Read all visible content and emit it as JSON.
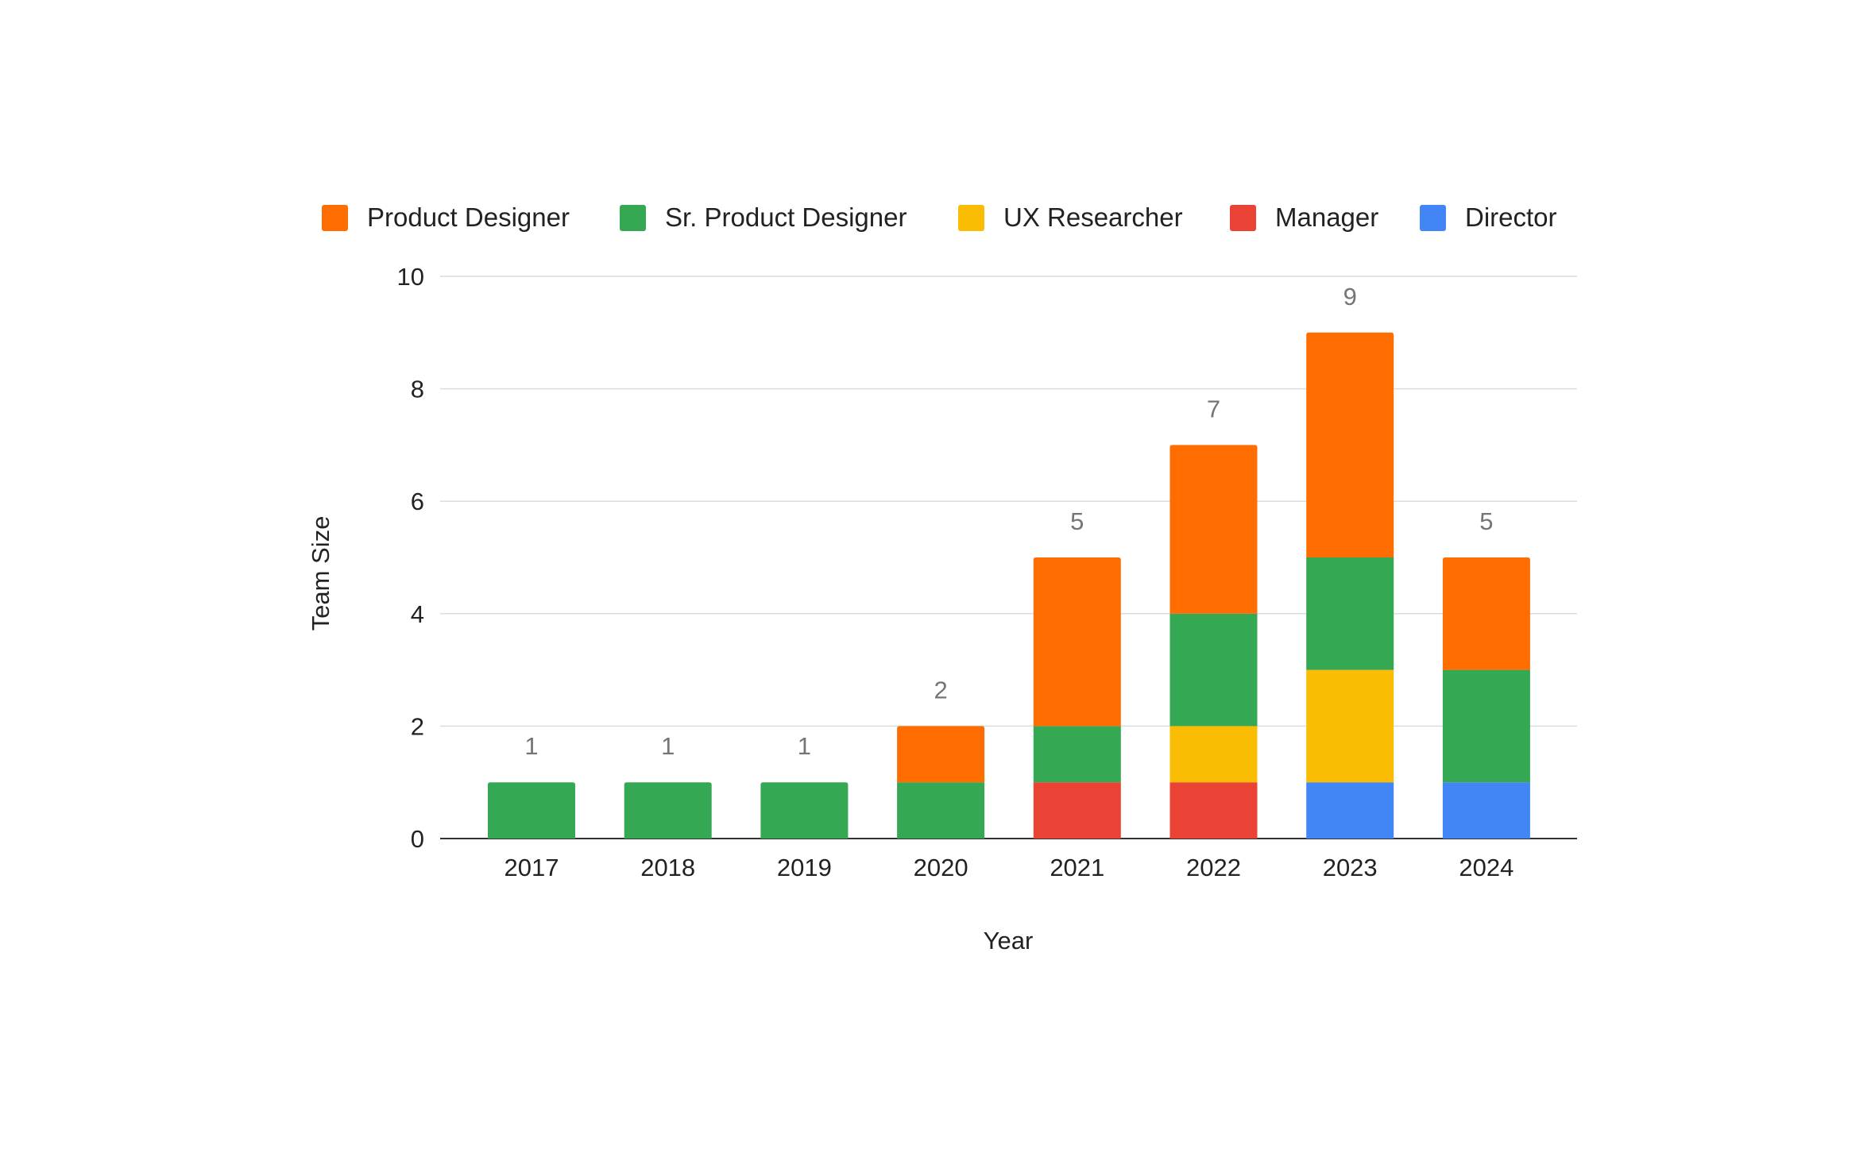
{
  "chart_data": {
    "type": "bar",
    "stacked": true,
    "title": "",
    "xlabel": "Year",
    "ylabel": "Team Size",
    "ylim": [
      0,
      10
    ],
    "yticks": [
      0,
      2,
      4,
      6,
      8,
      10
    ],
    "grid": true,
    "legend_position": "top",
    "categories": [
      "2017",
      "2018",
      "2019",
      "2020",
      "2021",
      "2022",
      "2023",
      "2024"
    ],
    "series": [
      {
        "name": "Product Designer",
        "color": "#ff6d01",
        "values": [
          0,
          0,
          0,
          1,
          3,
          3,
          4,
          2
        ]
      },
      {
        "name": "Sr. Product Designer",
        "color": "#34a853",
        "values": [
          1,
          1,
          1,
          1,
          1,
          2,
          2,
          2
        ]
      },
      {
        "name": "UX Researcher",
        "color": "#fbbc04",
        "values": [
          0,
          0,
          0,
          0,
          0,
          1,
          2,
          0
        ]
      },
      {
        "name": "Manager",
        "color": "#ea4335",
        "values": [
          0,
          0,
          0,
          0,
          1,
          1,
          0,
          0
        ]
      },
      {
        "name": "Director",
        "color": "#4285f4",
        "values": [
          0,
          0,
          0,
          0,
          0,
          0,
          1,
          1
        ]
      }
    ],
    "stack_order_bottom_to_top": [
      "Director",
      "Manager",
      "UX Researcher",
      "Sr. Product Designer",
      "Product Designer"
    ],
    "totals": [
      1,
      1,
      1,
      2,
      5,
      7,
      9,
      5
    ]
  }
}
